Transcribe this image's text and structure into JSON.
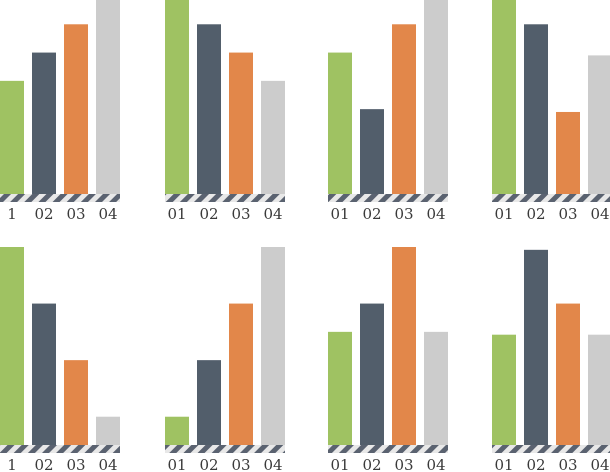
{
  "colors": {
    "green": "#9fc262",
    "slate": "#525e6b",
    "orange": "#e2874a",
    "gray": "#cccccc",
    "hatch_dark": "#5a6270",
    "hatch_light": "#e8e8e8"
  },
  "chart_data": [
    {
      "type": "bar",
      "categories": [
        "1",
        "02",
        "03",
        "04"
      ],
      "values": [
        4,
        5,
        6,
        7
      ],
      "colors": [
        "green",
        "slate",
        "orange",
        "gray"
      ],
      "ylim": [
        0,
        7
      ]
    },
    {
      "type": "bar",
      "categories": [
        "01",
        "02",
        "03",
        "04"
      ],
      "values": [
        7,
        6,
        5,
        4
      ],
      "colors": [
        "green",
        "slate",
        "orange",
        "gray"
      ],
      "ylim": [
        0,
        7
      ]
    },
    {
      "type": "bar",
      "categories": [
        "01",
        "02",
        "03",
        "04"
      ],
      "values": [
        5,
        3,
        6,
        7
      ],
      "colors": [
        "green",
        "slate",
        "orange",
        "gray"
      ],
      "ylim": [
        0,
        7
      ]
    },
    {
      "type": "bar",
      "categories": [
        "01",
        "02",
        "03",
        "04"
      ],
      "values": [
        6.9,
        6.0,
        2.9,
        4.9
      ],
      "colors": [
        "green",
        "slate",
        "orange",
        "gray"
      ],
      "ylim": [
        0,
        7
      ]
    },
    {
      "type": "bar",
      "categories": [
        "1",
        "02",
        "03",
        "04"
      ],
      "values": [
        7,
        5,
        3,
        1
      ],
      "colors": [
        "green",
        "slate",
        "orange",
        "gray"
      ],
      "ylim": [
        0,
        7
      ]
    },
    {
      "type": "bar",
      "categories": [
        "01",
        "02",
        "03",
        "04"
      ],
      "values": [
        1,
        3,
        5,
        7
      ],
      "colors": [
        "green",
        "slate",
        "orange",
        "gray"
      ],
      "ylim": [
        0,
        7
      ]
    },
    {
      "type": "bar",
      "categories": [
        "01",
        "02",
        "03",
        "04"
      ],
      "values": [
        4,
        5,
        7,
        4
      ],
      "colors": [
        "green",
        "slate",
        "orange",
        "gray"
      ],
      "ylim": [
        0,
        7
      ]
    },
    {
      "type": "bar",
      "categories": [
        "01",
        "02",
        "03",
        "04"
      ],
      "values": [
        3.9,
        6.9,
        5.0,
        3.9
      ],
      "colors": [
        "green",
        "slate",
        "orange",
        "gray"
      ],
      "ylim": [
        0,
        7
      ]
    }
  ]
}
